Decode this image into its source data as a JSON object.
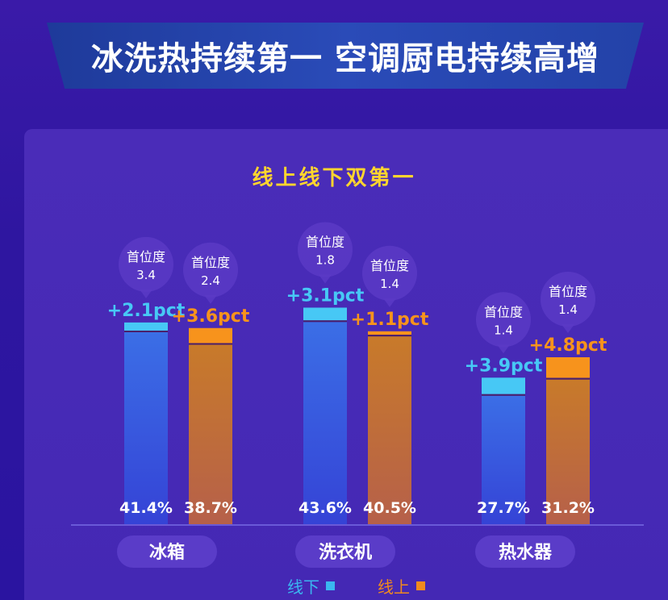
{
  "header": {
    "title": "冰洗热持续第一  空调厨电持续高增"
  },
  "chart_data": {
    "type": "bar",
    "title": "线上线下双第一",
    "categories": [
      "冰箱",
      "洗衣机",
      "热水器"
    ],
    "series": [
      {
        "name": "线下",
        "color": "#3ab6f0",
        "values": [
          41.4,
          43.6,
          27.7
        ],
        "value_labels": [
          "41.4%",
          "43.6%",
          "27.7%"
        ],
        "change": [
          2.1,
          3.1,
          3.9
        ],
        "change_labels": [
          "+2.1pct",
          "+3.1pct",
          "+3.9pct"
        ],
        "lead_label": "首位度",
        "lead": [
          "3.4",
          "1.8",
          "1.4"
        ]
      },
      {
        "name": "线上",
        "color": "#f08a1e",
        "values": [
          38.7,
          40.5,
          31.2
        ],
        "value_labels": [
          "38.7%",
          "40.5%",
          "31.2%"
        ],
        "change": [
          3.6,
          1.1,
          4.8
        ],
        "change_labels": [
          "+3.6pct",
          "+1.1pct",
          "+4.8pct"
        ],
        "lead_label": "首位度",
        "lead": [
          "2.4",
          "1.4",
          "1.4"
        ]
      }
    ],
    "legend_position": "bottom-center"
  }
}
